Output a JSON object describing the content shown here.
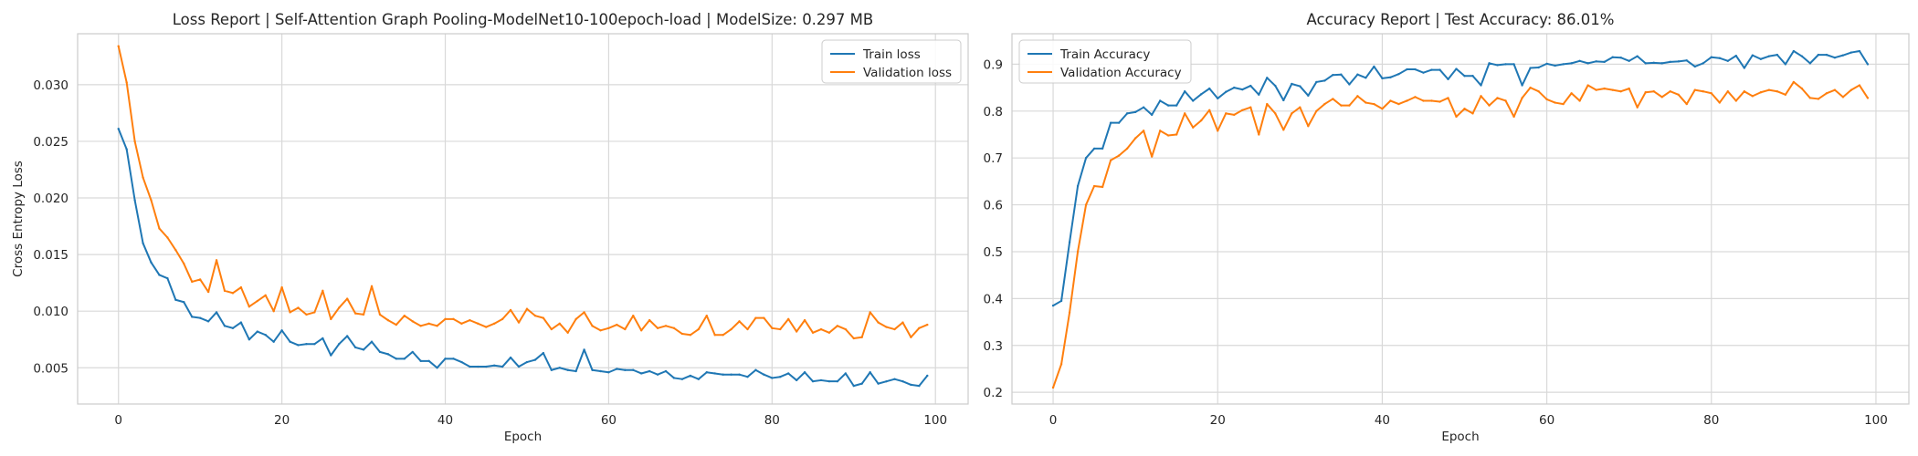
{
  "chart_data": [
    {
      "type": "line",
      "title": "Loss Report | Self-Attention Graph Pooling-ModelNet10-100epoch-load | ModelSize: 0.297 MB",
      "xlabel": "Epoch",
      "ylabel": "Cross Entropy Loss",
      "xlim": [
        -5,
        104
      ],
      "ylim": [
        0.0018,
        0.0345
      ],
      "xticks": [
        0,
        20,
        40,
        60,
        80,
        100
      ],
      "yticks": [
        0.005,
        0.01,
        0.015,
        0.02,
        0.025,
        0.03
      ],
      "ytick_labels": [
        "0.005",
        "0.010",
        "0.015",
        "0.020",
        "0.025",
        "0.030"
      ],
      "grid": true,
      "legend_position": "top-right",
      "series": [
        {
          "name": "Train loss",
          "color": "#1f77b4",
          "values": [
            0.0261,
            0.0243,
            0.0198,
            0.016,
            0.0143,
            0.0132,
            0.0129,
            0.011,
            0.0108,
            0.0095,
            0.0094,
            0.0091,
            0.0099,
            0.0087,
            0.0085,
            0.009,
            0.0075,
            0.0082,
            0.0079,
            0.0073,
            0.0083,
            0.0073,
            0.007,
            0.0071,
            0.0071,
            0.0076,
            0.0061,
            0.0071,
            0.0078,
            0.0068,
            0.0066,
            0.0073,
            0.0064,
            0.0062,
            0.0058,
            0.0058,
            0.0064,
            0.0056,
            0.0056,
            0.005,
            0.0058,
            0.0058,
            0.0055,
            0.0051,
            0.0051,
            0.0051,
            0.0052,
            0.0051,
            0.0059,
            0.0051,
            0.0055,
            0.0057,
            0.0063,
            0.0048,
            0.005,
            0.0048,
            0.0047,
            0.0066,
            0.0048,
            0.0047,
            0.0046,
            0.0049,
            0.0048,
            0.0048,
            0.0045,
            0.0047,
            0.0044,
            0.0047,
            0.0041,
            0.004,
            0.0043,
            0.004,
            0.0046,
            0.0045,
            0.0044,
            0.0044,
            0.0044,
            0.0042,
            0.0048,
            0.0044,
            0.0041,
            0.0042,
            0.0045,
            0.0039,
            0.0046,
            0.0038,
            0.0039,
            0.0038,
            0.0038,
            0.0045,
            0.0034,
            0.0036,
            0.0046,
            0.0036,
            0.0038,
            0.004,
            0.0038,
            0.0035,
            0.0034,
            0.0043
          ]
        },
        {
          "name": "Validation loss",
          "color": "#ff7f0e",
          "values": [
            0.0334,
            0.0302,
            0.025,
            0.0218,
            0.0198,
            0.0173,
            0.0165,
            0.0154,
            0.0142,
            0.0126,
            0.0128,
            0.0117,
            0.0145,
            0.0118,
            0.0116,
            0.0121,
            0.0104,
            0.0109,
            0.0114,
            0.01,
            0.0121,
            0.0099,
            0.0103,
            0.0097,
            0.0099,
            0.0118,
            0.0093,
            0.0103,
            0.0111,
            0.0098,
            0.0097,
            0.0122,
            0.0097,
            0.0092,
            0.0088,
            0.0096,
            0.0091,
            0.0087,
            0.0089,
            0.0087,
            0.0093,
            0.0093,
            0.0089,
            0.0092,
            0.0089,
            0.0086,
            0.0089,
            0.0093,
            0.0101,
            0.009,
            0.0102,
            0.0096,
            0.0094,
            0.0084,
            0.0089,
            0.0081,
            0.0093,
            0.0099,
            0.0087,
            0.0083,
            0.0085,
            0.0088,
            0.0084,
            0.0096,
            0.0083,
            0.0092,
            0.0085,
            0.0087,
            0.0085,
            0.008,
            0.0079,
            0.0084,
            0.0096,
            0.0079,
            0.0079,
            0.0084,
            0.0091,
            0.0084,
            0.0094,
            0.0094,
            0.0085,
            0.0084,
            0.0093,
            0.0082,
            0.0092,
            0.0081,
            0.0084,
            0.0081,
            0.0087,
            0.0084,
            0.0076,
            0.0077,
            0.0099,
            0.009,
            0.0086,
            0.0084,
            0.009,
            0.0077,
            0.0085,
            0.0088
          ]
        }
      ]
    },
    {
      "type": "line",
      "title": "Accuracy Report | Test Accuracy: 86.01%",
      "xlabel": "Epoch",
      "ylabel": "",
      "xlim": [
        -5,
        104
      ],
      "ylim": [
        0.175,
        0.965
      ],
      "xticks": [
        0,
        20,
        40,
        60,
        80,
        100
      ],
      "yticks": [
        0.2,
        0.3,
        0.4,
        0.5,
        0.6,
        0.7,
        0.8,
        0.9
      ],
      "ytick_labels": [
        "0.2",
        "0.3",
        "0.4",
        "0.5",
        "0.6",
        "0.7",
        "0.8",
        "0.9"
      ],
      "grid": true,
      "legend_position": "top-left",
      "series": [
        {
          "name": "Train Accuracy",
          "color": "#1f77b4",
          "values": [
            0.385,
            0.395,
            0.52,
            0.64,
            0.7,
            0.72,
            0.72,
            0.775,
            0.775,
            0.795,
            0.798,
            0.808,
            0.792,
            0.822,
            0.812,
            0.812,
            0.842,
            0.822,
            0.836,
            0.848,
            0.827,
            0.841,
            0.85,
            0.846,
            0.854,
            0.835,
            0.871,
            0.854,
            0.823,
            0.858,
            0.853,
            0.833,
            0.862,
            0.865,
            0.877,
            0.878,
            0.857,
            0.878,
            0.871,
            0.895,
            0.87,
            0.872,
            0.879,
            0.889,
            0.889,
            0.882,
            0.888,
            0.888,
            0.868,
            0.89,
            0.875,
            0.875,
            0.855,
            0.902,
            0.898,
            0.9,
            0.9,
            0.855,
            0.892,
            0.893,
            0.901,
            0.897,
            0.9,
            0.902,
            0.907,
            0.902,
            0.906,
            0.905,
            0.915,
            0.914,
            0.907,
            0.917,
            0.902,
            0.903,
            0.902,
            0.905,
            0.906,
            0.908,
            0.895,
            0.902,
            0.915,
            0.913,
            0.907,
            0.918,
            0.892,
            0.919,
            0.911,
            0.917,
            0.92,
            0.9,
            0.928,
            0.917,
            0.902,
            0.92,
            0.92,
            0.914,
            0.919,
            0.925,
            0.928,
            0.9
          ]
        },
        {
          "name": "Validation Accuracy",
          "color": "#ff7f0e",
          "values": [
            0.21,
            0.26,
            0.37,
            0.5,
            0.6,
            0.64,
            0.638,
            0.695,
            0.705,
            0.72,
            0.742,
            0.758,
            0.703,
            0.758,
            0.748,
            0.75,
            0.795,
            0.765,
            0.78,
            0.802,
            0.758,
            0.795,
            0.792,
            0.802,
            0.808,
            0.75,
            0.815,
            0.795,
            0.76,
            0.795,
            0.808,
            0.768,
            0.8,
            0.815,
            0.826,
            0.812,
            0.812,
            0.832,
            0.818,
            0.815,
            0.805,
            0.822,
            0.815,
            0.822,
            0.83,
            0.822,
            0.822,
            0.82,
            0.828,
            0.788,
            0.805,
            0.795,
            0.832,
            0.812,
            0.828,
            0.822,
            0.788,
            0.828,
            0.85,
            0.842,
            0.825,
            0.818,
            0.815,
            0.838,
            0.822,
            0.855,
            0.845,
            0.848,
            0.845,
            0.842,
            0.848,
            0.808,
            0.84,
            0.842,
            0.83,
            0.842,
            0.835,
            0.815,
            0.845,
            0.842,
            0.838,
            0.818,
            0.842,
            0.822,
            0.842,
            0.832,
            0.84,
            0.845,
            0.842,
            0.835,
            0.862,
            0.848,
            0.828,
            0.826,
            0.838,
            0.845,
            0.83,
            0.845,
            0.855,
            0.828
          ]
        }
      ]
    }
  ]
}
